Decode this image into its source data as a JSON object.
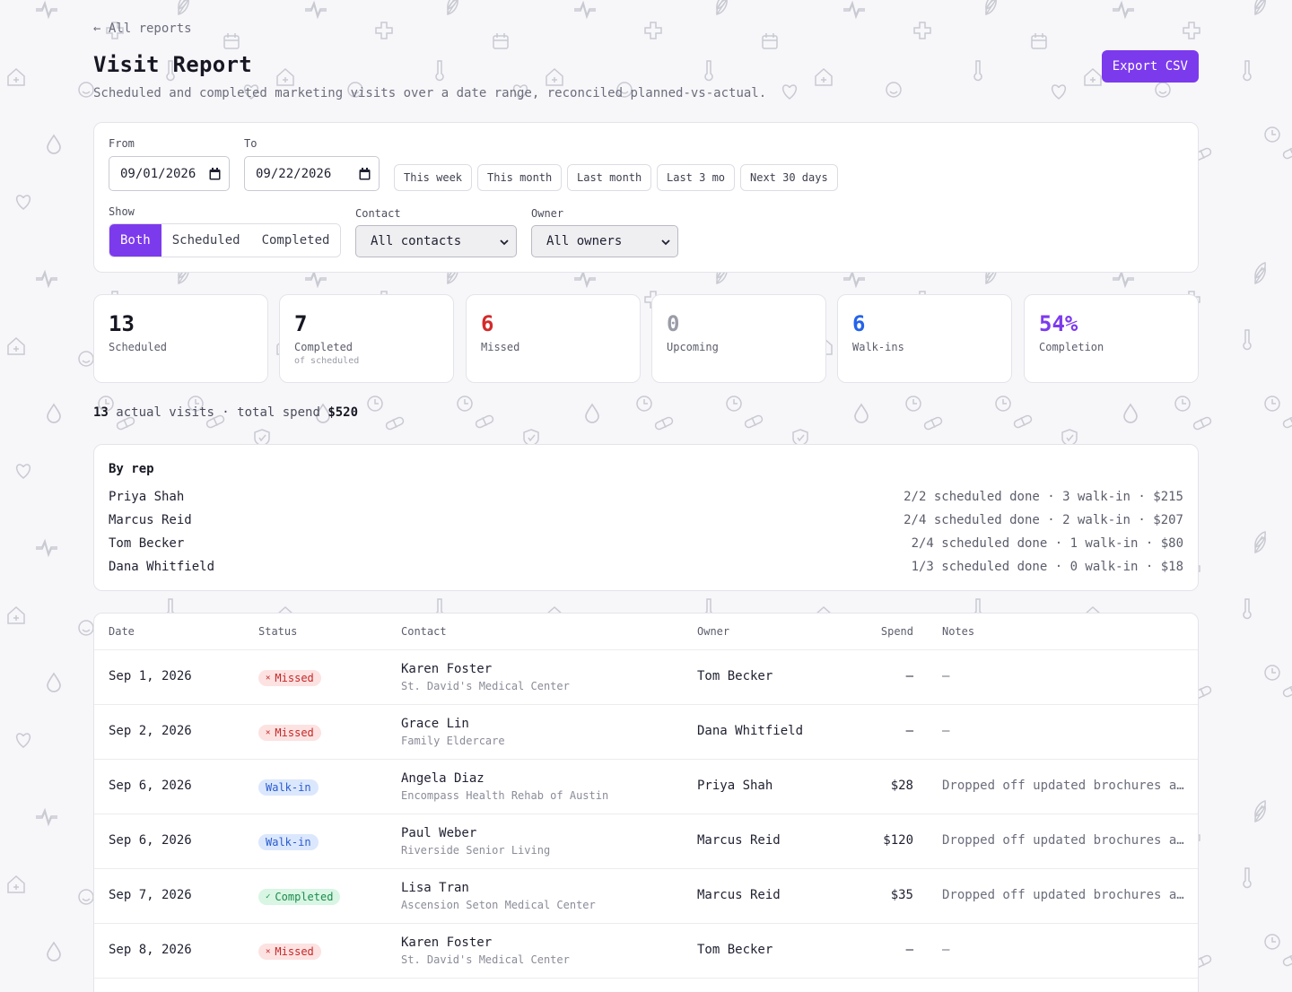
{
  "header": {
    "back_label": "← All reports",
    "title": "Visit Report",
    "subtitle": "Scheduled and completed marketing visits over a date range, reconciled planned-vs-actual.",
    "export_label": "Export CSV"
  },
  "filters": {
    "from_label": "From",
    "from_value": "09/01/2026",
    "to_label": "To",
    "to_value": "09/22/2026",
    "presets": [
      "This week",
      "This month",
      "Last month",
      "Last 3 mo",
      "Next 30 days"
    ],
    "show_label": "Show",
    "show_options": [
      "Both",
      "Scheduled",
      "Completed"
    ],
    "show_selected": "Both",
    "contact_label": "Contact",
    "contact_value": "All contacts",
    "owner_label": "Owner",
    "owner_value": "All owners"
  },
  "stats": [
    {
      "value": "13",
      "label": "Scheduled",
      "sub": "",
      "color": "#161722"
    },
    {
      "value": "7",
      "label": "Completed",
      "sub": "of scheduled",
      "color": "#161722"
    },
    {
      "value": "6",
      "label": "Missed",
      "sub": "",
      "color": "#d42a2a"
    },
    {
      "value": "0",
      "label": "Upcoming",
      "sub": "",
      "color": "#9a9ca8"
    },
    {
      "value": "6",
      "label": "Walk-ins",
      "sub": "",
      "color": "#2563eb"
    },
    {
      "value": "54%",
      "label": "Completion",
      "sub": "",
      "color": "#7c3aed"
    }
  ],
  "summary": {
    "visits": "13",
    "visits_text": "actual visits · total spend",
    "spend": "$520"
  },
  "by_rep": {
    "title": "By rep",
    "rows": [
      {
        "name": "Priya Shah",
        "stats": "2/2 scheduled done · 3 walk-in · $215"
      },
      {
        "name": "Marcus Reid",
        "stats": "2/4 scheduled done · 2 walk-in · $207"
      },
      {
        "name": "Tom Becker",
        "stats": "2/4 scheduled done · 1 walk-in · $80"
      },
      {
        "name": "Dana Whitfield",
        "stats": "1/3 scheduled done · 0 walk-in · $18"
      }
    ]
  },
  "table": {
    "columns": [
      "Date",
      "Status",
      "Contact",
      "Owner",
      "Spend",
      "Notes"
    ],
    "rows": [
      {
        "date": "Sep 1, 2026",
        "status": "Missed",
        "status_type": "missed",
        "contact": "Karen Foster",
        "org": "St. David's Medical Center",
        "owner": "Tom Becker",
        "spend": "—",
        "notes": "—"
      },
      {
        "date": "Sep 2, 2026",
        "status": "Missed",
        "status_type": "missed",
        "contact": "Grace Lin",
        "org": "Family Eldercare",
        "owner": "Dana Whitfield",
        "spend": "—",
        "notes": "—"
      },
      {
        "date": "Sep 6, 2026",
        "status": "Walk-in",
        "status_type": "walkin",
        "contact": "Angela Diaz",
        "org": "Encompass Health Rehab of Austin",
        "owner": "Priya Shah",
        "spend": "$28",
        "notes": "Dropped off updated brochures a…"
      },
      {
        "date": "Sep 6, 2026",
        "status": "Walk-in",
        "status_type": "walkin",
        "contact": "Paul Weber",
        "org": "Riverside Senior Living",
        "owner": "Marcus Reid",
        "spend": "$120",
        "notes": "Dropped off updated brochures a…"
      },
      {
        "date": "Sep 7, 2026",
        "status": "Completed",
        "status_type": "completed",
        "contact": "Lisa Tran",
        "org": "Ascension Seton Medical Center",
        "owner": "Marcus Reid",
        "spend": "$35",
        "notes": "Dropped off updated brochures a…"
      },
      {
        "date": "Sep 8, 2026",
        "status": "Missed",
        "status_type": "missed",
        "contact": "Karen Foster",
        "org": "St. David's Medical Center",
        "owner": "Tom Becker",
        "spend": "—",
        "notes": "—"
      }
    ]
  },
  "icons": {
    "missed": "x-circle-icon",
    "completed": "check-circle-icon",
    "calendar": "calendar-icon",
    "select": "chevron-down-icon"
  }
}
